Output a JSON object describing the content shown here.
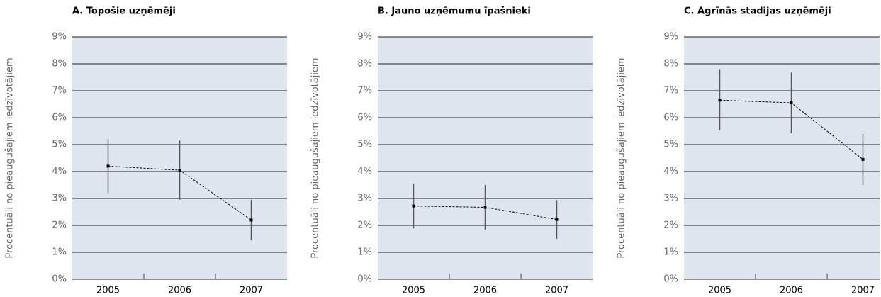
{
  "chart_data": [
    {
      "type": "line",
      "title": "A. Topošie uzņēmēji",
      "ylabel": "Procentuāli no pieaugušajiem iedzīvotājiem",
      "categories": [
        "2005",
        "2006",
        "2007"
      ],
      "series": [
        {
          "color": "#000000",
          "values": [
            4.2,
            4.05,
            2.2
          ],
          "errors": [
            1.0,
            1.1,
            0.75
          ]
        }
      ],
      "ylim": [
        0,
        9
      ],
      "yticks": [
        {
          "value": 0,
          "label": "0%"
        },
        {
          "value": 1,
          "label": "1%"
        },
        {
          "value": 2,
          "label": "2%"
        },
        {
          "value": 3,
          "label": "3%"
        },
        {
          "value": 4,
          "label": "4%"
        },
        {
          "value": 5,
          "label": "5%"
        },
        {
          "value": 6,
          "label": "6%"
        },
        {
          "value": 7,
          "label": "7%"
        },
        {
          "value": 8,
          "label": "8%"
        },
        {
          "value": 9,
          "label": "9%"
        }
      ],
      "grid": true
    },
    {
      "type": "line",
      "title": "B. Jauno uzņēmumu īpašnieki",
      "ylabel": "Procentuāli no pieaugušajiem iedzīvotājiem",
      "categories": [
        "2005",
        "2006",
        "2007"
      ],
      "series": [
        {
          "color": "#000000",
          "values": [
            2.72,
            2.67,
            2.22
          ],
          "errors": [
            0.83,
            0.83,
            0.72
          ]
        }
      ],
      "ylim": [
        0,
        9
      ],
      "yticks": [
        {
          "value": 0,
          "label": "0%"
        },
        {
          "value": 1,
          "label": "1%"
        },
        {
          "value": 2,
          "label": "2%"
        },
        {
          "value": 3,
          "label": "3%"
        },
        {
          "value": 4,
          "label": "4%"
        },
        {
          "value": 5,
          "label": "5%"
        },
        {
          "value": 6,
          "label": "6%"
        },
        {
          "value": 7,
          "label": "7%"
        },
        {
          "value": 8,
          "label": "8%"
        },
        {
          "value": 9,
          "label": "9%"
        }
      ],
      "grid": true
    },
    {
      "type": "line",
      "title": "C. Agrīnās stadijas uzņēmēji",
      "ylabel": "Procentuāli no pieaugušajiem iedzīvotājiem",
      "categories": [
        "2005",
        "2006",
        "2007"
      ],
      "series": [
        {
          "color": "#000000",
          "values": [
            6.65,
            6.55,
            4.45
          ],
          "errors": [
            1.13,
            1.13,
            0.95
          ]
        }
      ],
      "ylim": [
        0,
        9
      ],
      "yticks": [
        {
          "value": 0,
          "label": "0%"
        },
        {
          "value": 1,
          "label": "1%"
        },
        {
          "value": 2,
          "label": "2%"
        },
        {
          "value": 3,
          "label": "3%"
        },
        {
          "value": 4,
          "label": "4%"
        },
        {
          "value": 5,
          "label": "5%"
        },
        {
          "value": 6,
          "label": "6%"
        },
        {
          "value": 7,
          "label": "7%"
        },
        {
          "value": 8,
          "label": "8%"
        },
        {
          "value": 9,
          "label": "9%"
        }
      ],
      "grid": true
    }
  ]
}
